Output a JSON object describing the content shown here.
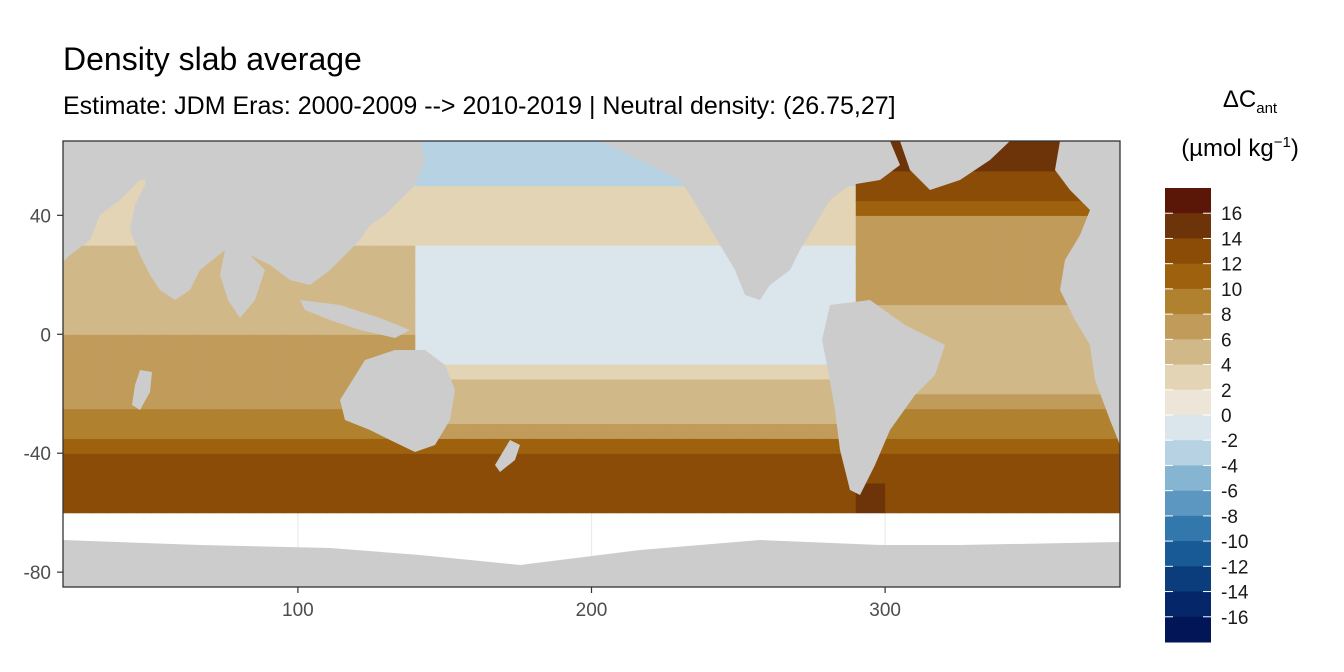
{
  "chart_data": {
    "type": "heatmap",
    "title": "Density slab average",
    "subtitle": "Estimate: JDM Eras: 2000-2009 --> 2010-2019 | Neutral density: (26.75,27]",
    "xlabel": "",
    "ylabel": "",
    "xlim": [
      20,
      380
    ],
    "ylim": [
      -85,
      65
    ],
    "x_ticks": [
      100,
      200,
      300
    ],
    "y_ticks": [
      40,
      0,
      -40,
      -80
    ],
    "grid": true,
    "panel_background": "white",
    "land_color": "#cccccc",
    "missing_color": "#ffffff",
    "legend": {
      "title_symbol": "ΔC",
      "title_subscript": "ant",
      "unit_prefix": "(µmol kg",
      "unit_superscript": "−1",
      "unit_suffix": ")",
      "position": "right",
      "labels": [
        "16",
        "14",
        "12",
        "10",
        "8",
        "6",
        "4",
        "2",
        "0",
        "-2",
        "-4",
        "-6",
        "-8",
        "-10",
        "-12",
        "-14",
        "-16"
      ],
      "colors": [
        "#5a1708",
        "#6e3409",
        "#8a4c06",
        "#9e620e",
        "#b0822f",
        "#c09b5a",
        "#d1b889",
        "#e3d4b5",
        "#ede6d8",
        "#dbe6ec",
        "#b6d2e3",
        "#86b5d2",
        "#5b97c0",
        "#3378ac",
        "#175a95",
        "#0b3d7c",
        "#06266a",
        "#021557"
      ]
    },
    "regions": {
      "north_pacific_subtropical": "0 to 2",
      "equatorial_pacific": "-2 to 0",
      "subarctic_pacific": "-4 to -2",
      "north_atlantic": "6 to 16",
      "indian_ocean_subtropical": "4 to 8",
      "southern_ocean_band_40S_to_55S": "12 to 16",
      "south_atlantic_subtropical": "4 to 8",
      "south_of_55S": "no data"
    }
  }
}
